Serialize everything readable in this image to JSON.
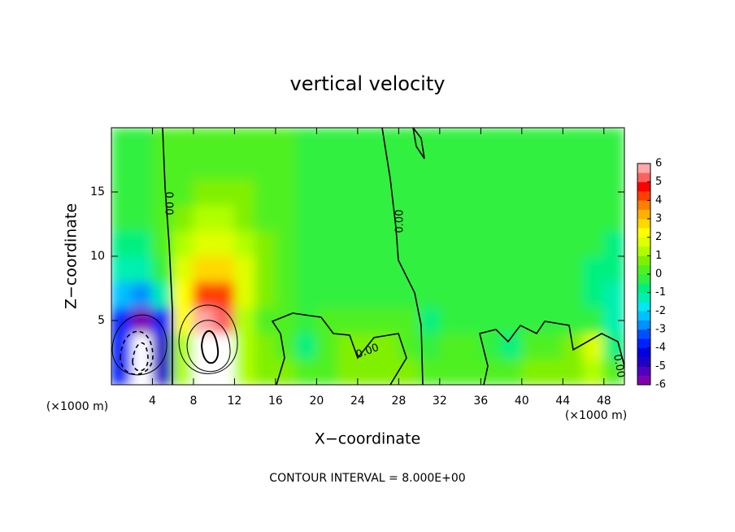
{
  "chart_data": {
    "type": "contour",
    "title": "vertical velocity",
    "x_label": "X−coordinate",
    "y_label": "Z−coordinate",
    "x_unit": "(×1000 m)",
    "y_unit": "(×1000 m)",
    "footer": "CONTOUR INTERVAL = 8.000E+00",
    "xlim": [
      0,
      50
    ],
    "xticks": [
      4,
      8,
      12,
      16,
      20,
      24,
      28,
      32,
      36,
      40,
      44,
      48
    ],
    "ylim": [
      0,
      20
    ],
    "yticks": [
      5,
      10,
      15
    ],
    "x": [
      1,
      3,
      5,
      7,
      9,
      11,
      13,
      15,
      17,
      19,
      21,
      23,
      25,
      27,
      29,
      31,
      33,
      35,
      37,
      39,
      41,
      43,
      45,
      47,
      49
    ],
    "y": [
      1,
      3,
      5,
      7,
      9,
      11,
      13,
      15,
      17,
      19
    ],
    "z": [
      [
        -4,
        -10,
        -5,
        1,
        10,
        9,
        1,
        0.5,
        0.5,
        0,
        0.3,
        0.5,
        0.8,
        0.5,
        0.5,
        0,
        0.2,
        0,
        0,
        0,
        0.5,
        0.5,
        0.5,
        1,
        0
      ],
      [
        -4,
        -10,
        -5,
        1,
        10,
        8,
        1,
        0.5,
        0.3,
        -1,
        0.3,
        0.5,
        0.8,
        0.5,
        0.3,
        -0.5,
        0,
        0,
        -0.5,
        -1,
        0,
        0.3,
        0.5,
        1.5,
        -1
      ],
      [
        -4,
        -6,
        -4,
        2,
        6,
        5,
        1,
        0.3,
        0,
        -0.5,
        0,
        0,
        0,
        0,
        0,
        -0.8,
        -0.5,
        -0.3,
        -0.3,
        -0.3,
        -0.3,
        -0.3,
        -0.3,
        -0.5,
        -1.5
      ],
      [
        -2.5,
        -3,
        -1.5,
        2,
        4,
        4,
        1.5,
        0.5,
        0,
        -0.3,
        -0.3,
        -0.3,
        -0.3,
        -0.3,
        -0.3,
        -0.5,
        -0.5,
        -0.5,
        -0.5,
        -0.5,
        -0.5,
        -0.5,
        -0.5,
        -0.8,
        -1.5
      ],
      [
        -1.5,
        -1.5,
        -0.5,
        1.5,
        2.5,
        2.5,
        1.5,
        0.5,
        0,
        -0.3,
        -0.3,
        -0.3,
        -0.2,
        -0.2,
        -0.2,
        -0.3,
        -0.4,
        -0.4,
        -0.4,
        -0.4,
        -0.4,
        -0.4,
        -0.4,
        -0.6,
        -1
      ],
      [
        -1,
        -1,
        0,
        1,
        1.5,
        1.5,
        1,
        0.5,
        0,
        -0.3,
        -0.3,
        -0.2,
        -0.2,
        -0.2,
        -0.2,
        -0.3,
        -0.3,
        -0.3,
        -0.3,
        -0.3,
        -0.3,
        -0.3,
        -0.3,
        -0.4,
        -0.6
      ],
      [
        -0.5,
        -0.5,
        0,
        0.5,
        1,
        1,
        0.7,
        0.3,
        0,
        -0.2,
        -0.2,
        -0.2,
        -0.2,
        -0.2,
        -0.2,
        -0.2,
        -0.3,
        -0.3,
        -0.3,
        -0.3,
        -0.3,
        -0.3,
        -0.3,
        -0.3,
        -0.4
      ],
      [
        -0.3,
        -0.3,
        0,
        0.3,
        0.5,
        0.5,
        0.5,
        0.2,
        0,
        -0.2,
        -0.2,
        -0.2,
        -0.2,
        -0.2,
        -0.2,
        -0.2,
        -0.3,
        -0.3,
        -0.3,
        -0.3,
        -0.3,
        -0.3,
        -0.3,
        -0.3,
        -0.3
      ],
      [
        -0.3,
        -0.3,
        0,
        0.2,
        0.3,
        0.3,
        0.3,
        0.2,
        0,
        -0.2,
        -0.2,
        -0.2,
        -0.2,
        -0.2,
        -0.2,
        -0.2,
        -0.3,
        -0.3,
        -0.3,
        -0.3,
        -0.3,
        -0.3,
        -0.3,
        -0.3,
        -0.3
      ],
      [
        -0.3,
        -0.3,
        0,
        0.1,
        0.2,
        0.2,
        0.2,
        0.1,
        0,
        -0.2,
        -0.2,
        -0.2,
        -0.2,
        -0.2,
        -0.2,
        -0.2,
        -0.3,
        -0.3,
        -0.3,
        -0.3,
        -0.3,
        -0.3,
        -0.3,
        -0.3,
        -0.3
      ]
    ],
    "clim": [
      -6,
      6
    ],
    "cticks": [
      -6,
      -5,
      -4,
      -3,
      -2,
      -1,
      0,
      1,
      2,
      3,
      4,
      5,
      6
    ],
    "colorscale": [
      "#8000b0",
      "#5000c0",
      "#2000c8",
      "#0000e0",
      "#0020ff",
      "#0050ff",
      "#0090ff",
      "#00c0ff",
      "#00e8f0",
      "#00f0b0",
      "#00f080",
      "#30f040",
      "#50f020",
      "#80f000",
      "#b0ff00",
      "#e0ff00",
      "#ffff00",
      "#ffd800",
      "#ffb000",
      "#ff8000",
      "#ff4000",
      "#ff0000",
      "#ff6060",
      "#ffa8a8"
    ],
    "out_of_range_color": "#ffffff",
    "contour_labels": [
      "0.00",
      "0.00",
      "0.00",
      "0.00"
    ]
  }
}
